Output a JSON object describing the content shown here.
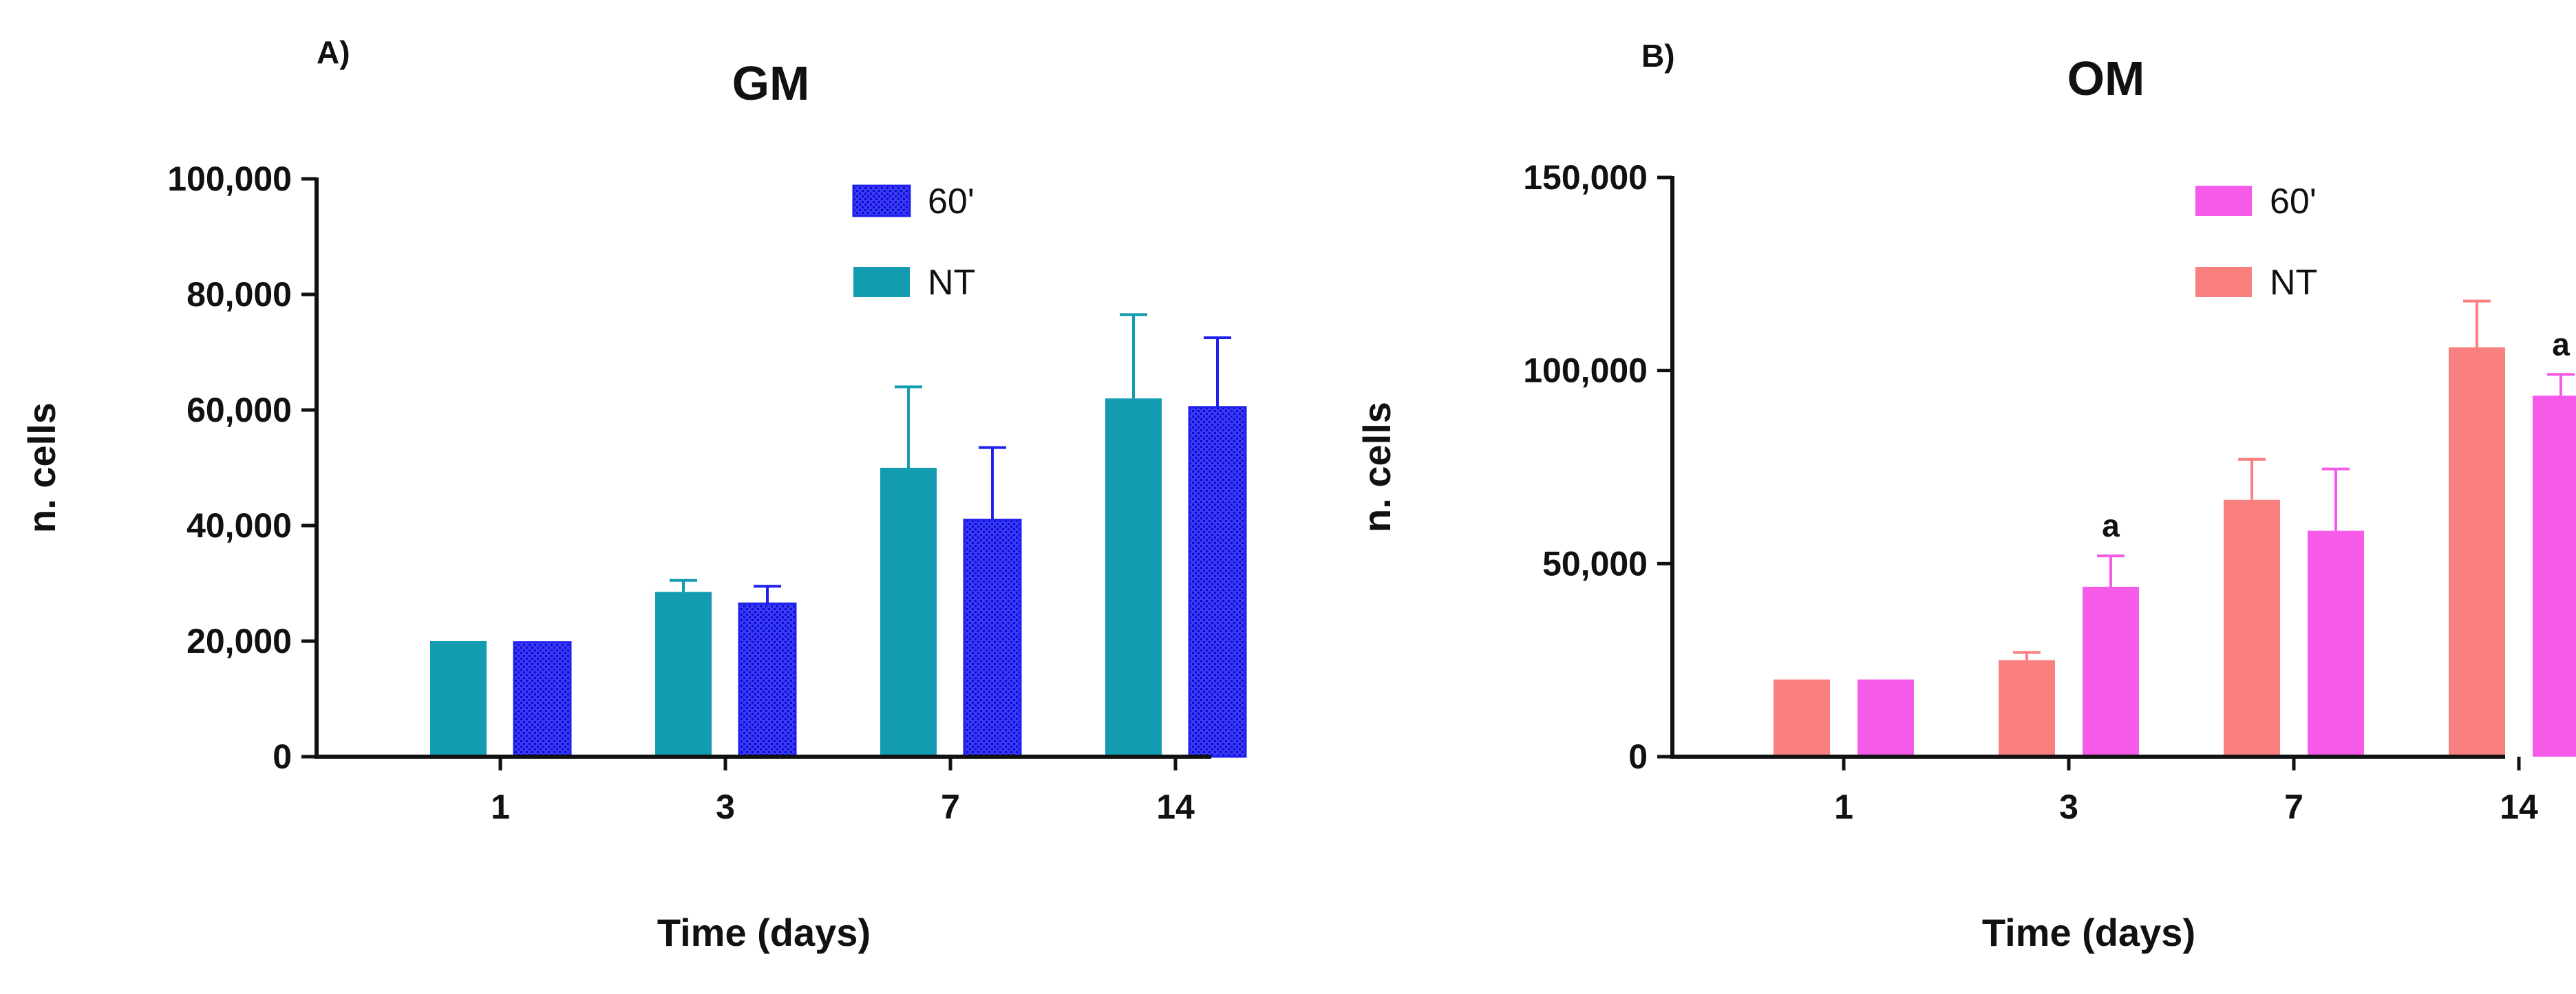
{
  "chart_data": [
    {
      "type": "bar",
      "panel": "A)",
      "title": "GM",
      "xlabel": "Time (days)",
      "ylabel": "n. cells",
      "categories": [
        "1",
        "3",
        "7",
        "14"
      ],
      "ylim": [
        0,
        100000
      ],
      "yticks": [
        0,
        20000,
        40000,
        60000,
        80000,
        100000
      ],
      "ytick_labels": [
        "0",
        "20,000",
        "40,000",
        "60,000",
        "80,000",
        "100,000"
      ],
      "legend": [
        "60'",
        "NT"
      ],
      "series": [
        {
          "name": "NT",
          "values": [
            20000,
            28500,
            50000,
            62000
          ],
          "errors": [
            0,
            2000,
            14000,
            14500
          ],
          "color": "#139bb0",
          "pattern": false,
          "annotations": [
            "",
            "",
            "",
            ""
          ]
        },
        {
          "name": "60'",
          "values": [
            19800,
            26500,
            41000,
            60500
          ],
          "errors": [
            0,
            3000,
            12500,
            12000
          ],
          "color": "#1f1ff0",
          "pattern": true,
          "annotations": [
            "",
            "",
            "",
            ""
          ]
        }
      ]
    },
    {
      "type": "bar",
      "panel": "B)",
      "title": "OM",
      "xlabel": "Time (days)",
      "ylabel": "n. cells",
      "categories": [
        "1",
        "3",
        "7",
        "14"
      ],
      "ylim": [
        0,
        150000
      ],
      "yticks": [
        0,
        50000,
        100000,
        150000
      ],
      "ytick_labels": [
        "0",
        "50,000",
        "100,000",
        "150,000"
      ],
      "legend": [
        "60'",
        "NT"
      ],
      "series": [
        {
          "name": "NT",
          "values": [
            20000,
            25000,
            66500,
            106000
          ],
          "errors": [
            0,
            2000,
            10500,
            12000
          ],
          "color": "#fa8080",
          "pattern": false,
          "annotations": [
            "",
            "",
            "",
            ""
          ]
        },
        {
          "name": "60'",
          "values": [
            20000,
            44000,
            58500,
            93500
          ],
          "errors": [
            0,
            8000,
            16000,
            5500
          ],
          "color": "#f55ae8",
          "pattern": false,
          "annotations": [
            "",
            "a",
            "",
            "a"
          ]
        }
      ]
    }
  ]
}
